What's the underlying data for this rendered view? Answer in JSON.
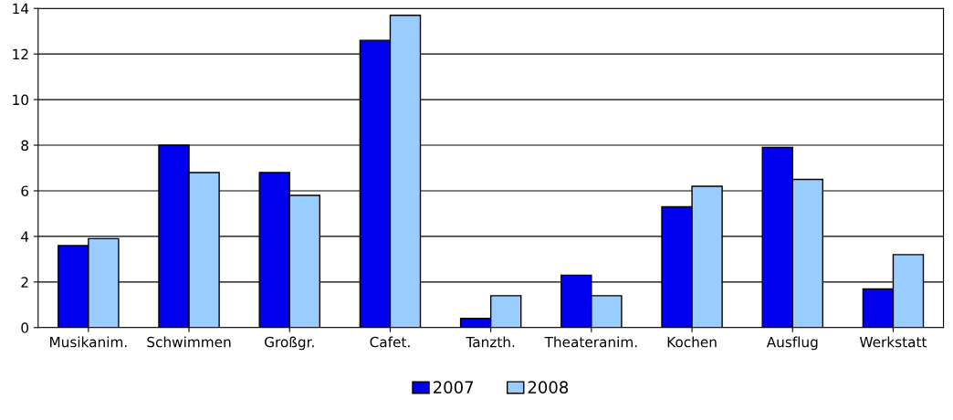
{
  "chart_data": {
    "type": "bar",
    "categories": [
      "Musikanim.",
      "Schwimmen",
      "Großgr.",
      "Cafet.",
      "Tanzth.",
      "Theateranim.",
      "Kochen",
      "Ausflug",
      "Werkstatt"
    ],
    "series": [
      {
        "name": "2007",
        "color": "#0000ee",
        "values": [
          3.6,
          8.0,
          6.8,
          12.6,
          0.4,
          2.3,
          5.3,
          7.9,
          1.7
        ]
      },
      {
        "name": "2008",
        "color": "#99ccff",
        "values": [
          3.9,
          6.8,
          5.8,
          13.7,
          1.4,
          1.4,
          6.2,
          6.5,
          3.2
        ]
      }
    ],
    "ylim": [
      0,
      14
    ],
    "yticks": [
      0,
      2,
      4,
      6,
      8,
      10,
      12,
      14
    ],
    "grid": "y",
    "legend": "bottom"
  }
}
